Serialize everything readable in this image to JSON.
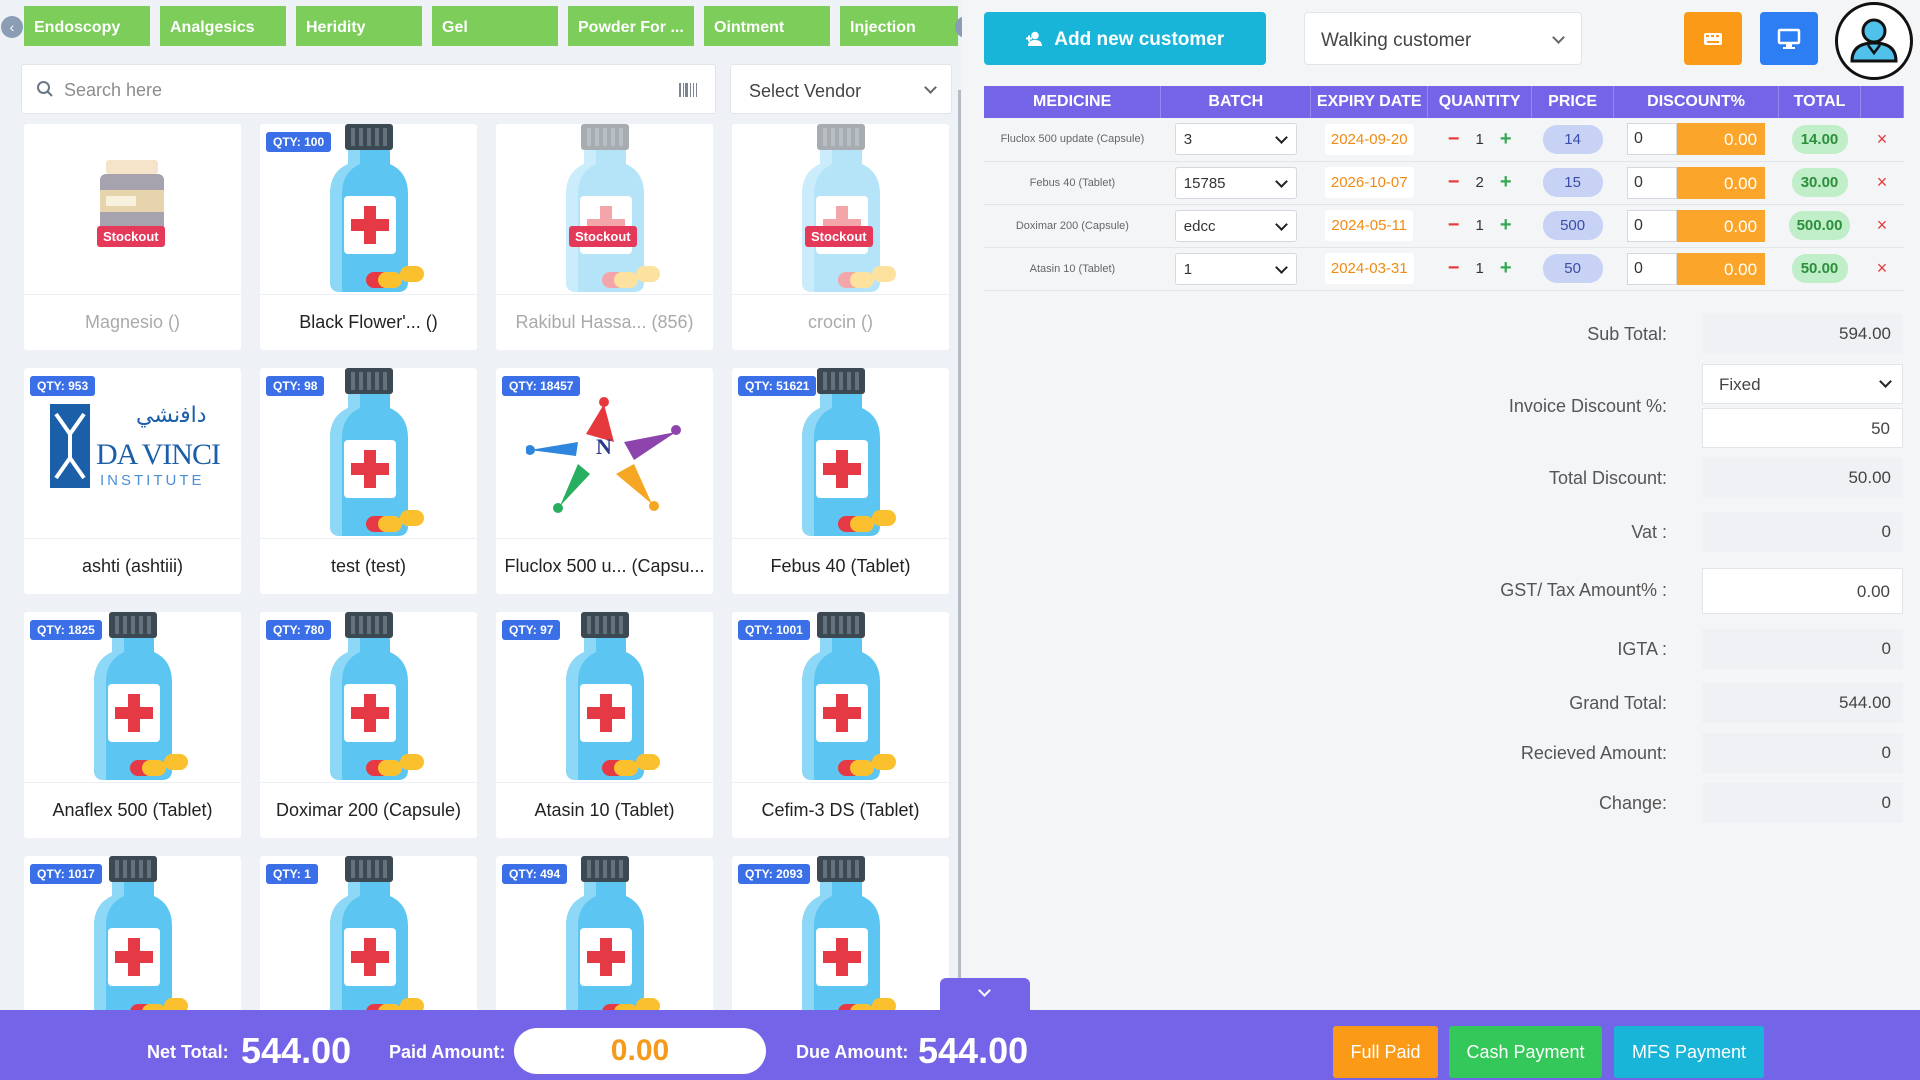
{
  "categories": {
    "prev_arrow": "‹",
    "next_arrow": "›",
    "tabs": [
      "Endoscopy",
      "Analgesics",
      "Heridity",
      "Gel",
      "Powder For ...",
      "Ointment",
      "Injection"
    ]
  },
  "search": {
    "placeholder": "Search here"
  },
  "vendor": {
    "selected": "Select Vendor"
  },
  "products": [
    {
      "name": "Magnesio ()",
      "qty": "",
      "stockout": "Stockout",
      "image": "vitamin-jar"
    },
    {
      "name": "Black Flower'... ()",
      "qty": "QTY: 100",
      "stockout": "",
      "image": "bottle"
    },
    {
      "name": "Rakibul Hassa... (856)",
      "qty": "",
      "stockout": "Stockout",
      "image": "bottle"
    },
    {
      "name": "crocin ()",
      "qty": "",
      "stockout": "Stockout",
      "image": "bottle"
    },
    {
      "name": "ashti (ashtiii)",
      "qty": "QTY: 953",
      "stockout": "",
      "image": "davinci-logo"
    },
    {
      "name": "test (test)",
      "qty": "QTY: 98",
      "stockout": "",
      "image": "bottle"
    },
    {
      "name": "Fluclox 500 u... (Capsu...",
      "qty": "QTY: 18457",
      "stockout": "",
      "image": "star-logo"
    },
    {
      "name": "Febus 40 (Tablet)",
      "qty": "QTY: 51621",
      "stockout": "",
      "image": "bottle"
    },
    {
      "name": "Anaflex 500 (Tablet)",
      "qty": "QTY: 1825",
      "stockout": "",
      "image": "bottle"
    },
    {
      "name": "Doximar 200 (Capsule)",
      "qty": "QTY: 780",
      "stockout": "",
      "image": "bottle"
    },
    {
      "name": "Atasin 10 (Tablet)",
      "qty": "QTY: 97",
      "stockout": "",
      "image": "bottle"
    },
    {
      "name": "Cefim-3 DS (Tablet)",
      "qty": "QTY: 1001",
      "stockout": "",
      "image": "bottle"
    },
    {
      "name": "",
      "qty": "QTY: 1017",
      "stockout": "",
      "image": "bottle"
    },
    {
      "name": "",
      "qty": "QTY: 1",
      "stockout": "",
      "image": "bottle"
    },
    {
      "name": "",
      "qty": "QTY: 494",
      "stockout": "",
      "image": "bottle"
    },
    {
      "name": "",
      "qty": "QTY: 2093",
      "stockout": "",
      "image": "bottle"
    }
  ],
  "logos": {
    "davinci_arabic": "داﻓنشي",
    "davinci_name": "DA VINCI",
    "davinci_sub": "INSTITUTE",
    "star_letter": "N"
  },
  "customer": {
    "add_label": "Add new customer",
    "selected": "Walking customer"
  },
  "cart": {
    "headers": [
      "MEDICINE",
      "BATCH",
      "EXPIRY DATE",
      "QUANTITY",
      "PRICE",
      "DISCOUNT%",
      "TOTAL"
    ],
    "rows": [
      {
        "medicine": "Fluclox 500 update (Capsule)",
        "batch": "3",
        "expiry": "2024-09-20",
        "qty": "1",
        "price": "14",
        "disc_in": "0",
        "disc_amt": "0.00",
        "total": "14.00"
      },
      {
        "medicine": "Febus 40 (Tablet)",
        "batch": "15785",
        "expiry": "2026-10-07",
        "qty": "2",
        "price": "15",
        "disc_in": "0",
        "disc_amt": "0.00",
        "total": "30.00"
      },
      {
        "medicine": "Doximar 200 (Capsule)",
        "batch": "edcc",
        "expiry": "2024-05-11",
        "qty": "1",
        "price": "500",
        "disc_in": "0",
        "disc_amt": "0.00",
        "total": "500.00"
      },
      {
        "medicine": "Atasin 10 (Tablet)",
        "batch": "1",
        "expiry": "2024-03-31",
        "qty": "1",
        "price": "50",
        "disc_in": "0",
        "disc_amt": "0.00",
        "total": "50.00"
      }
    ],
    "minus": "−",
    "plus": "+",
    "remove": "×"
  },
  "summary": {
    "sub_total_label": "Sub Total:",
    "sub_total": "594.00",
    "discount_type": "Fixed",
    "invoice_discount_label": "Invoice Discount %:",
    "invoice_discount": "50",
    "total_discount_label": "Total Discount:",
    "total_discount": "50.00",
    "vat_label": "Vat :",
    "vat": "0",
    "gst_label": "GST/ Tax Amount% :",
    "gst": "0.00",
    "igta_label": "IGTA :",
    "igta": "0",
    "grand_total_label": "Grand Total:",
    "grand_total": "544.00",
    "received_label": "Recieved Amount:",
    "received": "0",
    "change_label": "Change:",
    "change": "0"
  },
  "footer": {
    "net_total_label": "Net Total:",
    "net_total": "544.00",
    "paid_label": "Paid Amount:",
    "paid": "0.00",
    "due_label": "Due Amount:",
    "due": "544.00",
    "full_paid": "Full Paid",
    "cash_payment": "Cash Payment",
    "mfs_payment": "MFS Payment"
  },
  "colors": {
    "accent": "#7465e8",
    "category": "#7ccd5a",
    "cyan": "#19b5d9",
    "orange": "#fb9a16",
    "blue": "#2e7ef3",
    "green": "#34c759",
    "qty_badge": "#3a6fe8",
    "stockout": "#e5395a"
  }
}
